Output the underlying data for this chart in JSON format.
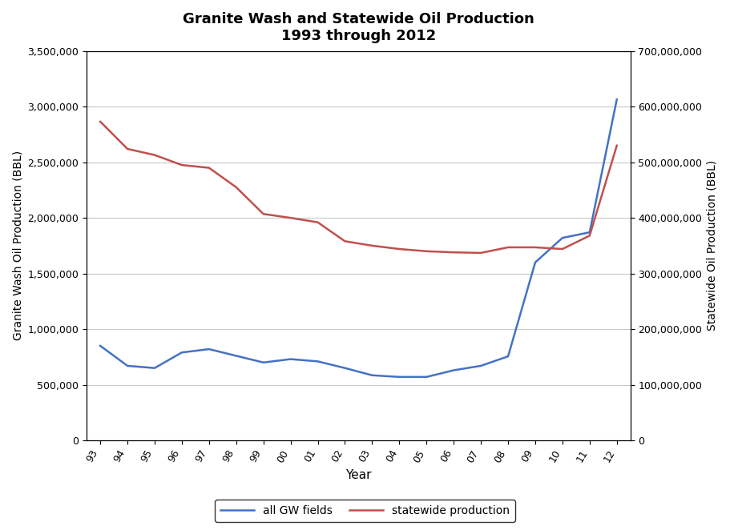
{
  "title_line1": "Granite Wash and Statewide Oil Production",
  "title_line2": "1993 through 2012",
  "xlabel": "Year",
  "ylabel_left": "Granite Wash Oil Production (BBL)",
  "ylabel_right": "Statewide Oil Production (BBL)",
  "years": [
    1993,
    1994,
    1995,
    1996,
    1997,
    1998,
    1999,
    2000,
    2001,
    2002,
    2003,
    2004,
    2005,
    2006,
    2007,
    2008,
    2009,
    2010,
    2011,
    2012
  ],
  "gw_production": [
    850000,
    670000,
    650000,
    790000,
    820000,
    760000,
    700000,
    730000,
    710000,
    650000,
    585000,
    570000,
    570000,
    630000,
    670000,
    755000,
    1600000,
    1820000,
    1870000,
    3065000
  ],
  "statewide_production": [
    573000000,
    524000000,
    513000000,
    495000000,
    490000000,
    455000000,
    407000000,
    400000000,
    392000000,
    358000000,
    350000000,
    344000000,
    340000000,
    338000000,
    337000000,
    347000000,
    347000000,
    344000000,
    368000000,
    530000000
  ],
  "gw_color": "#4472C4",
  "statewide_color": "#C0504D",
  "ylim_left": [
    0,
    3500000
  ],
  "ylim_right": [
    0,
    700000000
  ],
  "yticks_left": [
    0,
    500000,
    1000000,
    1500000,
    2000000,
    2500000,
    3000000,
    3500000
  ],
  "yticks_right": [
    0,
    100000000,
    200000000,
    300000000,
    400000000,
    500000000,
    600000000,
    700000000
  ],
  "legend_labels": [
    "all GW fields",
    "statewide production"
  ],
  "background_color": "#ffffff",
  "grid_color": "#c8c8c8",
  "border_color": "#000000"
}
